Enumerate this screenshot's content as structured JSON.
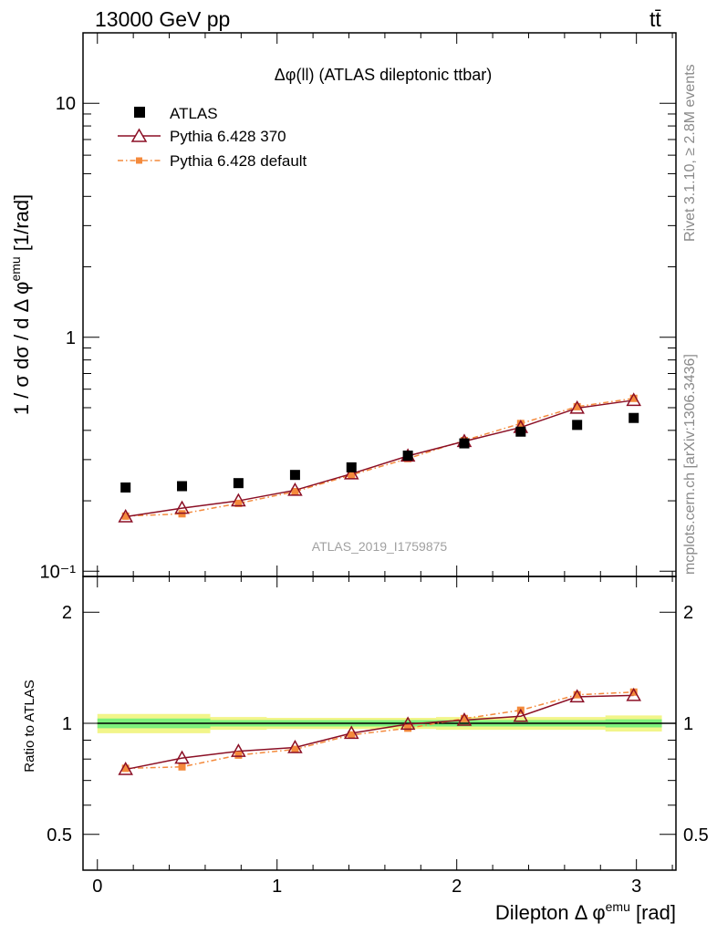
{
  "header": {
    "energy_label": "13000 GeV pp",
    "process_label": "tt̄"
  },
  "side_labels": {
    "rivet": "Rivet 3.1.10, ≥ 2.8M events",
    "mcplots": "mcplots.cern.ch [arXiv:1306.3436]"
  },
  "analysis_id": "ATLAS_2019_I1759875",
  "colors": {
    "data": "#000000",
    "pythia_370": "#8b0f25",
    "pythia_default": "#f48a3c",
    "band_inner": "#7cf07c",
    "band_outer": "#f2f58a"
  },
  "chart_data": [
    {
      "type": "line",
      "title": "Δφ(ll) (ATLAS dileptonic ttbar)",
      "xlabel": "Dilepton Δ φemu [rad]",
      "ylabel": "1 / σ  dσ / d Δ φemu [1/rad]",
      "yscale": "log",
      "xlim": [
        -0.08,
        3.22
      ],
      "ylim": [
        0.095,
        20
      ],
      "y_ticks": [
        {
          "value": 0.1,
          "label": "10⁻¹"
        },
        {
          "value": 1,
          "label": "1"
        },
        {
          "value": 10,
          "label": "10"
        }
      ],
      "legend_position": "top-left",
      "x": [
        0.157,
        0.471,
        0.785,
        1.1,
        1.414,
        1.728,
        2.042,
        2.356,
        2.67,
        2.985
      ],
      "series": [
        {
          "name": "ATLAS",
          "marker": "square",
          "values": [
            0.228,
            0.231,
            0.238,
            0.258,
            0.278,
            0.312,
            0.352,
            0.395,
            0.422,
            0.452
          ]
        },
        {
          "name": "Pythia 6.428 370",
          "marker": "triangle-open",
          "values": [
            0.171,
            0.186,
            0.2,
            0.222,
            0.261,
            0.311,
            0.359,
            0.412,
            0.498,
            0.538
          ]
        },
        {
          "name": "Pythia 6.428 default",
          "marker": "square-small",
          "line": "dash-dot",
          "values": [
            0.172,
            0.176,
            0.195,
            0.219,
            0.258,
            0.303,
            0.362,
            0.428,
            0.505,
            0.548
          ]
        }
      ]
    },
    {
      "type": "line",
      "ylabel": "Ratio to ATLAS",
      "xlabel": "Dilepton Δ φemu [rad]",
      "yscale": "log",
      "xlim": [
        -0.08,
        3.22
      ],
      "ylim": [
        0.4,
        2.5
      ],
      "y_ticks": [
        {
          "value": 0.5,
          "label": "0.5"
        },
        {
          "value": 1,
          "label": "1"
        },
        {
          "value": 2,
          "label": "2"
        }
      ],
      "x_ticks": [
        {
          "value": 0,
          "label": "0"
        },
        {
          "value": 1,
          "label": "1"
        },
        {
          "value": 2,
          "label": "2"
        },
        {
          "value": 3,
          "label": "3"
        }
      ],
      "x": [
        0.157,
        0.471,
        0.785,
        1.1,
        1.414,
        1.728,
        2.042,
        2.356,
        2.67,
        2.985
      ],
      "series": [
        {
          "name": "Pythia 6.428 370",
          "values": [
            0.75,
            0.805,
            0.84,
            0.86,
            0.94,
            0.995,
            1.02,
            1.045,
            1.18,
            1.19
          ]
        },
        {
          "name": "Pythia 6.428 default",
          "values": [
            0.755,
            0.762,
            0.82,
            0.85,
            0.93,
            0.97,
            1.03,
            1.085,
            1.195,
            1.215
          ]
        }
      ],
      "band_halfwidth_inner": [
        0.03,
        0.03,
        0.02,
        0.02,
        0.02,
        0.02,
        0.02,
        0.02,
        0.02,
        0.025
      ],
      "band_halfwidth_outer": [
        0.06,
        0.06,
        0.04,
        0.035,
        0.035,
        0.035,
        0.04,
        0.04,
        0.04,
        0.05
      ]
    }
  ]
}
